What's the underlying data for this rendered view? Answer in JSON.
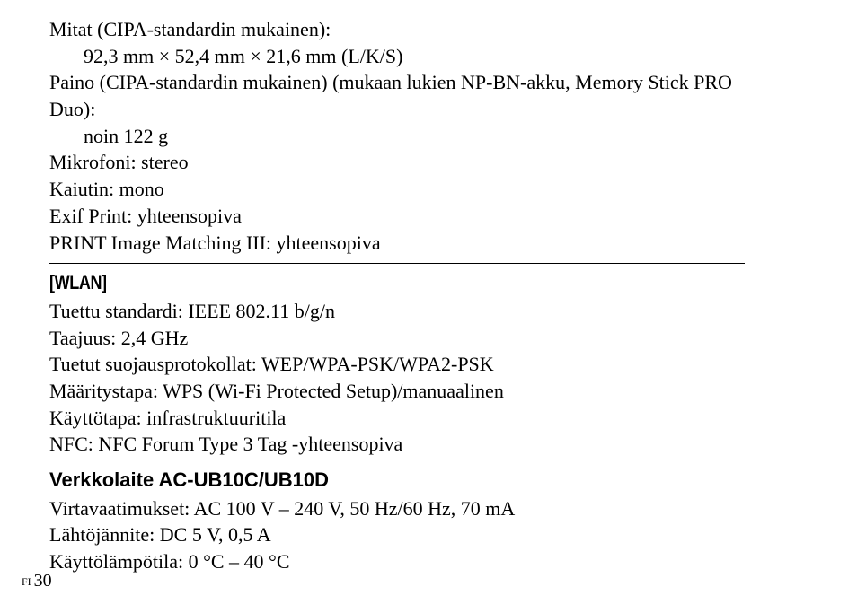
{
  "specs_top": {
    "dimensions_label": "Mitat (CIPA-standardin mukainen):",
    "dimensions_value": "92,3 mm × 52,4 mm × 21,6 mm (L/K/S)",
    "weight_label_line1": "Paino (CIPA-standardin mukainen) (mukaan lukien NP-BN-akku, Memory Stick PRO",
    "weight_label_line2": "Duo):",
    "weight_value": "noin 122 g",
    "microphone": "Mikrofoni: stereo",
    "speaker": "Kaiutin: mono",
    "exif": "Exif Print: yhteensopiva",
    "pim": "PRINT Image Matching III: yhteensopiva"
  },
  "wlan": {
    "heading": "[WLAN]",
    "standard": "Tuettu standardi: IEEE 802.11 b/g/n",
    "frequency": "Taajuus: 2,4 GHz",
    "security": "Tuetut suojausprotokollat: WEP/WPA-PSK/WPA2-PSK",
    "setup": "Määritystapa: WPS (Wi-Fi Protected Setup)/manuaalinen",
    "usage": "Käyttötapa: infrastruktuuritila",
    "nfc": "NFC: NFC Forum Type 3 Tag -yhteensopiva"
  },
  "adapter": {
    "heading": "Verkkolaite AC-UB10C/UB10D",
    "power_req": "Virtavaatimukset: AC 100 V – 240 V, 50 Hz/60 Hz, 70 mA",
    "output_voltage": "Lähtöjännite: DC 5 V, 0,5 A",
    "operating_temp": "Käyttölämpötila: 0 °C – 40 °C"
  },
  "footer": {
    "prefix": "FI",
    "page_number": "30"
  }
}
